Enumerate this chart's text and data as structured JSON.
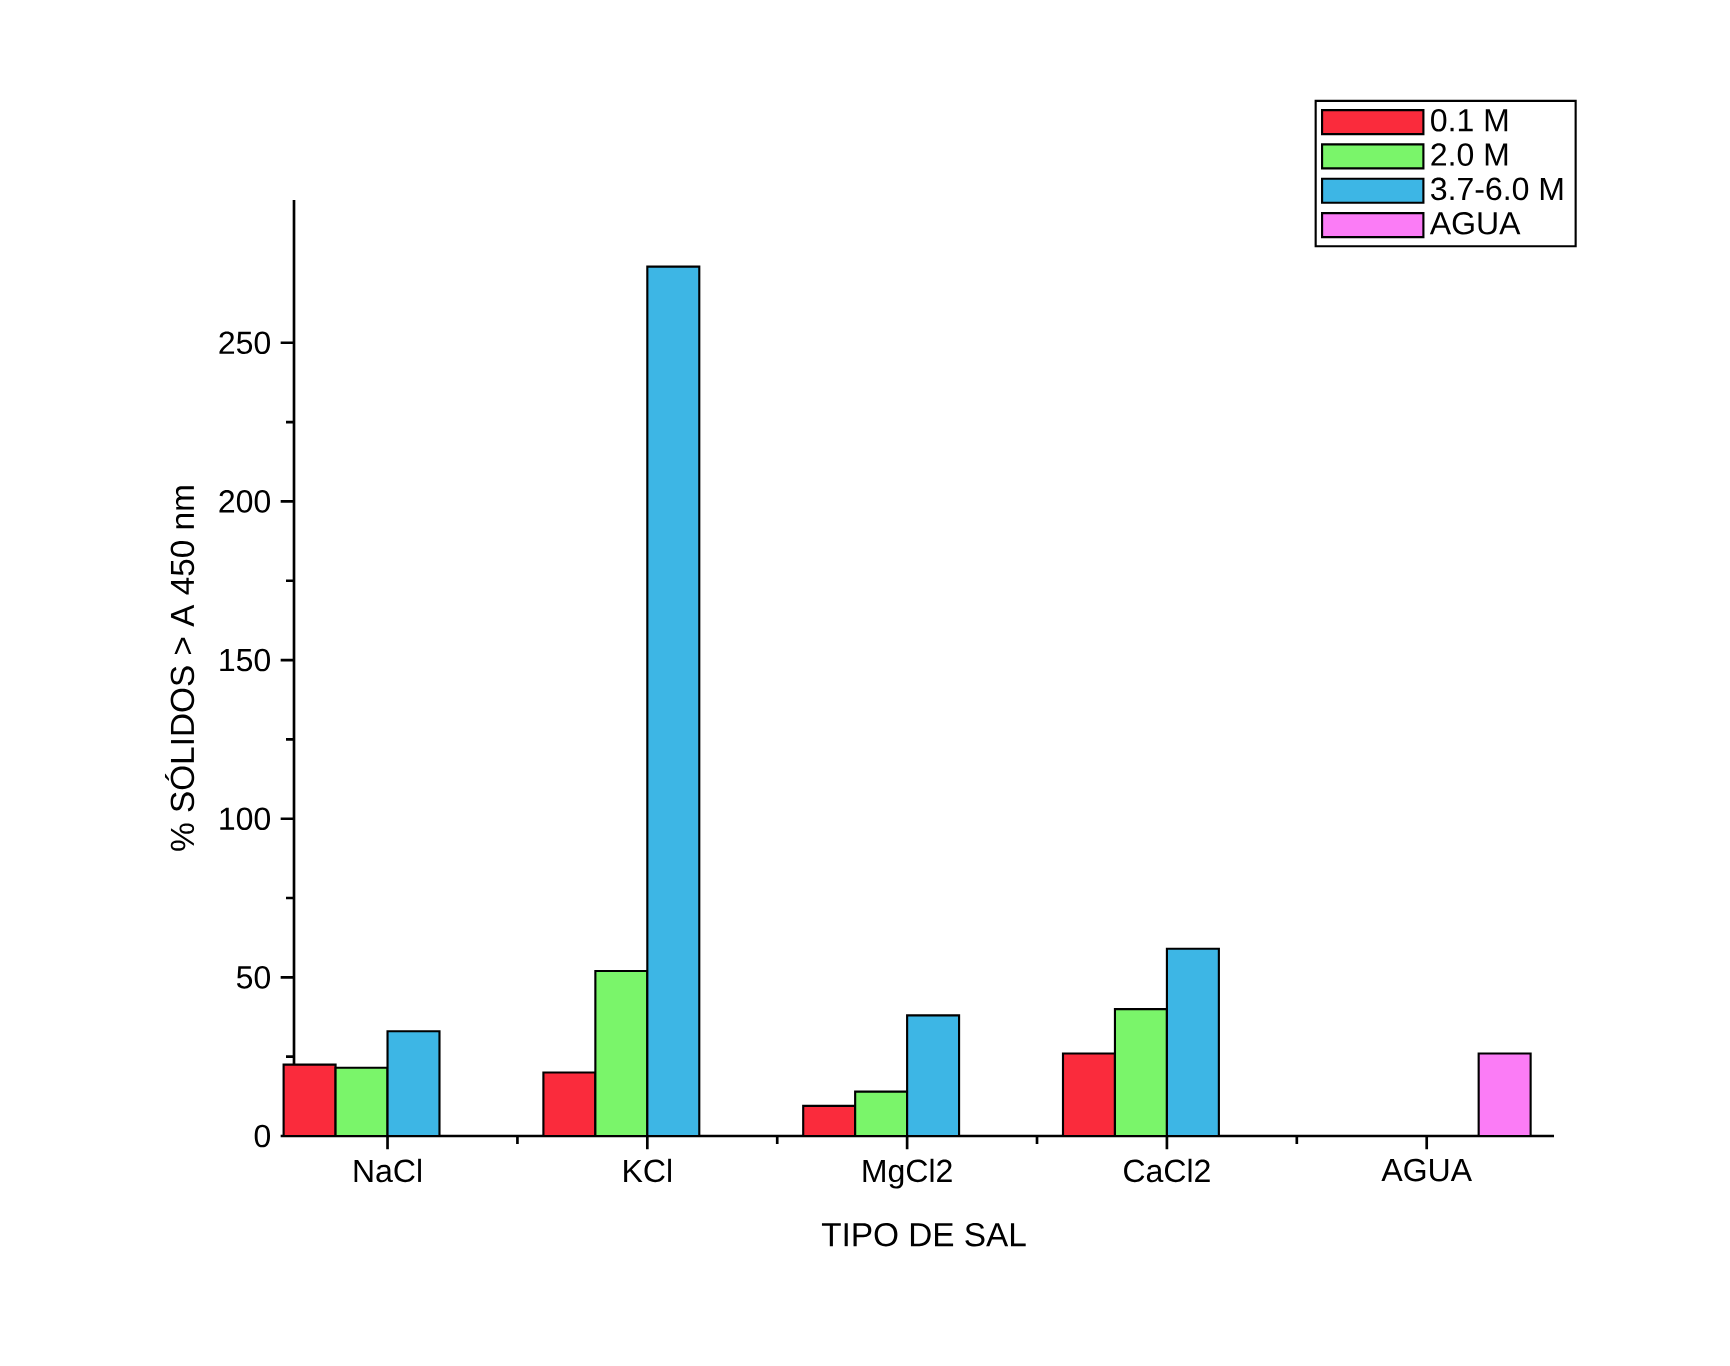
{
  "chart_data": {
    "type": "bar",
    "xlabel": "TIPO DE SAL",
    "ylabel": "% SÓLIDOS > A 450 nm",
    "categories": [
      "NaCl",
      "KCl",
      "MgCl2",
      "CaCl2",
      "AGUA"
    ],
    "series": [
      {
        "name": "0.1 M",
        "color": "#fa2b3c",
        "values": [
          22.5,
          20,
          9.5,
          26,
          null
        ]
      },
      {
        "name": "2.0 M",
        "color": "#7af56a",
        "values": [
          21.5,
          52,
          14,
          40,
          null
        ]
      },
      {
        "name": "3.7-6.0 M",
        "color": "#3db6e5",
        "values": [
          33,
          274,
          38,
          59,
          null
        ]
      },
      {
        "name": "AGUA",
        "color": "#fb7cf6",
        "values": [
          null,
          null,
          null,
          null,
          26
        ]
      }
    ],
    "ylim": [
      0,
      295
    ],
    "yticks": [
      0,
      50,
      100,
      150,
      200,
      250
    ],
    "grid": false,
    "legend": "top right"
  }
}
